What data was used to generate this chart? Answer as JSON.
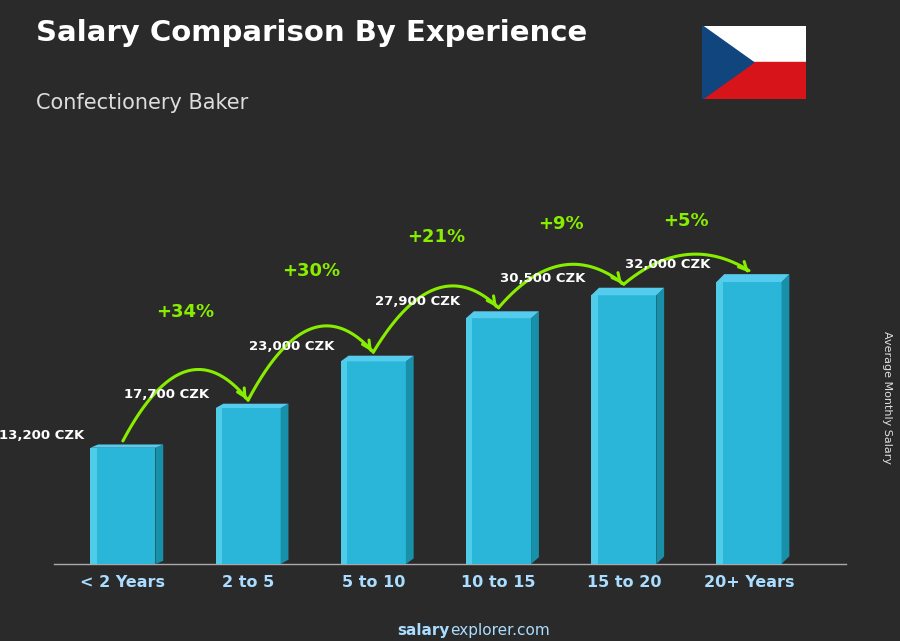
{
  "title": "Salary Comparison By Experience",
  "subtitle": "Confectionery Baker",
  "categories": [
    "< 2 Years",
    "2 to 5",
    "5 to 10",
    "10 to 15",
    "15 to 20",
    "20+ Years"
  ],
  "values": [
    13200,
    17700,
    23000,
    27900,
    30500,
    32000
  ],
  "labels": [
    "13,200 CZK",
    "17,700 CZK",
    "23,000 CZK",
    "27,900 CZK",
    "30,500 CZK",
    "32,000 CZK"
  ],
  "pct_changes": [
    "+34%",
    "+30%",
    "+21%",
    "+9%",
    "+5%"
  ],
  "bar_front": "#29b6d8",
  "bar_left": "#60d8f0",
  "bar_top": "#55ccee",
  "bar_right": "#1890aa",
  "text_color": "#ffffff",
  "green_color": "#88ee00",
  "ylabel": "Average Monthly Salary",
  "watermark_bold": "salary",
  "watermark_rest": "explorer.com",
  "ylim_max": 40000,
  "bg_color": "#2a2a2a"
}
